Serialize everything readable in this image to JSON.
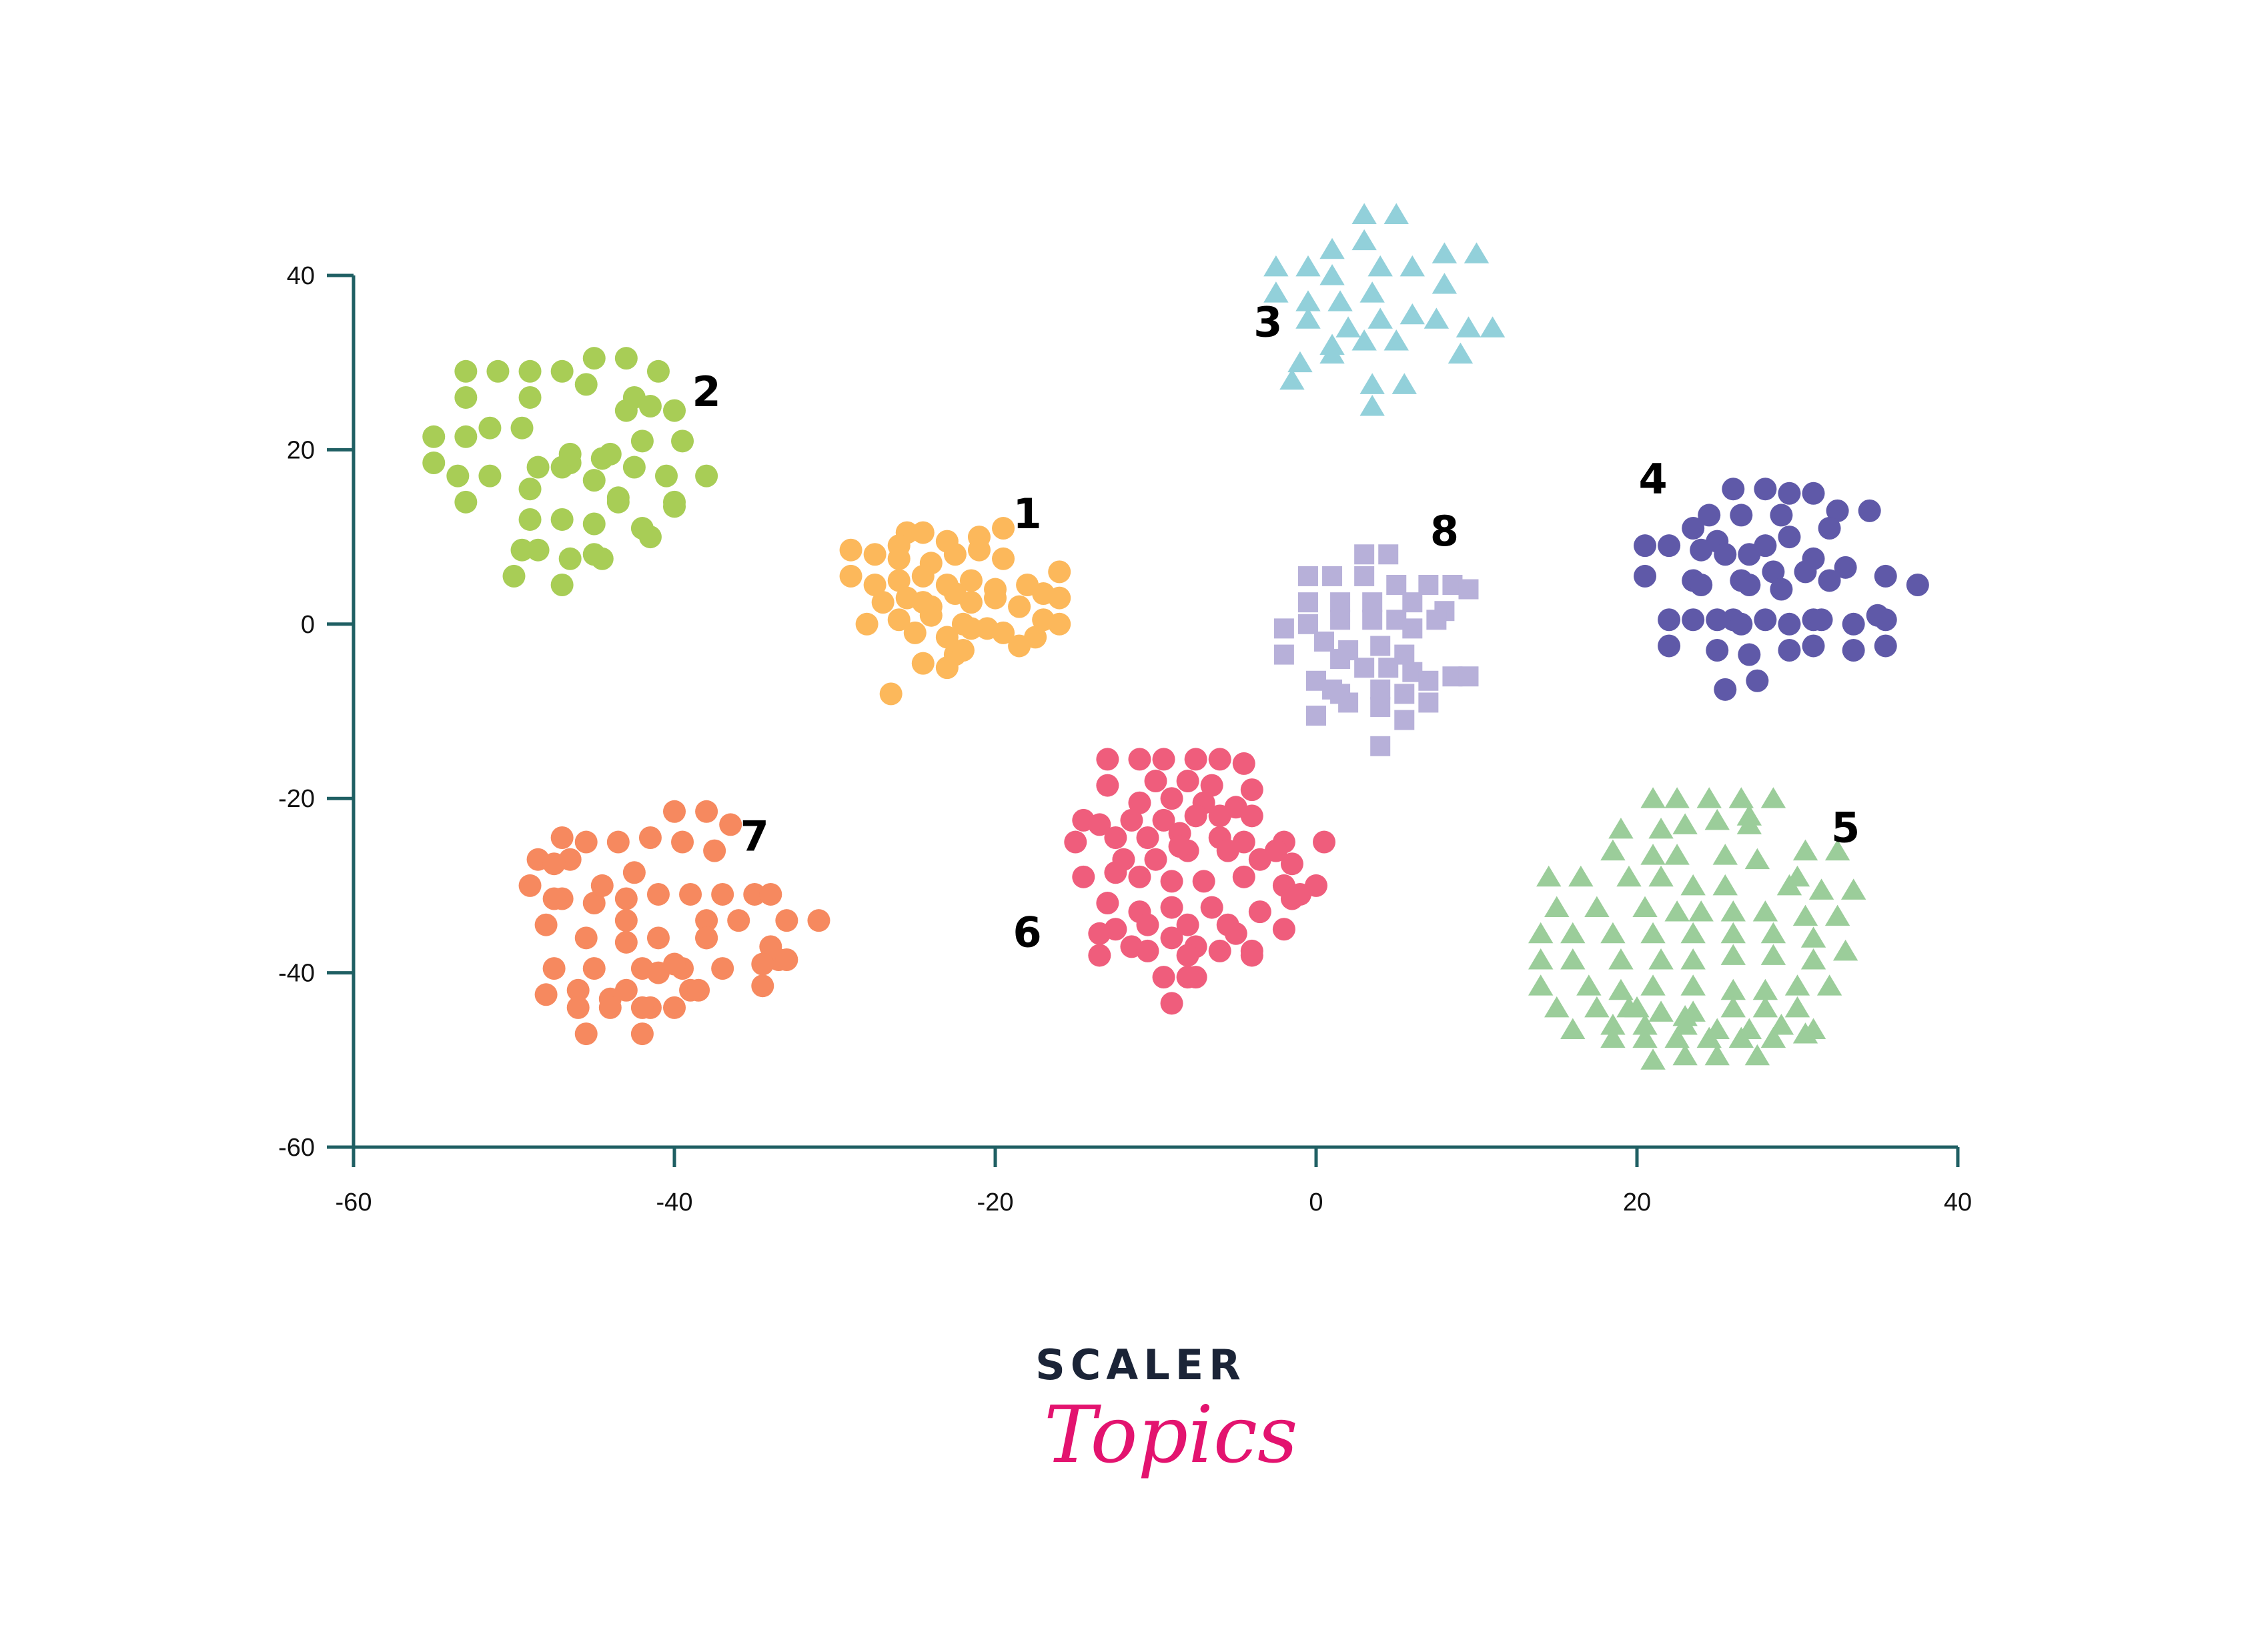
{
  "chart_data": {
    "type": "scatter",
    "title": "",
    "xlabel": "",
    "ylabel": "",
    "xlim": [
      -60,
      40
    ],
    "ylim": [
      -60,
      40
    ],
    "x_ticks": [
      "-60",
      "-40",
      "-20",
      "0",
      "20",
      "40"
    ],
    "y_ticks": [
      "40",
      "20",
      "0",
      "-20",
      "-40",
      "-60"
    ],
    "grid": false,
    "legend": "none",
    "axis_color": "#1f5f63",
    "series": [
      {
        "name": "1",
        "marker": "circle",
        "color": "#fcb85b",
        "label_pos": [
          -18,
          11
        ],
        "x": [
          -25.5,
          -26.0,
          -24.5,
          -23.0,
          -21.0,
          -19.5,
          -29.0,
          -27.5,
          -26.0,
          -24.0,
          -22.5,
          -21.0,
          -19.5,
          -29.0,
          -27.5,
          -26.0,
          -24.5,
          -23.0,
          -21.5,
          -20.0,
          -18.0,
          -16.0,
          -17.0,
          -27.0,
          -25.5,
          -24.0,
          -22.5,
          -21.5,
          -20.0,
          -18.5,
          -16.0,
          -28.0,
          -26.0,
          -24.0,
          -22.0,
          -20.5,
          -17.0,
          -25.0,
          -23.0,
          -21.5,
          -19.5,
          -18.5,
          -22.5,
          -24.5,
          -23.0,
          -16.0,
          -17.5,
          -26.5,
          -22.0,
          -24.5
        ],
        "y": [
          10.5,
          9.0,
          10.5,
          9.5,
          10.0,
          11.0,
          8.5,
          8.0,
          7.5,
          7.0,
          8.0,
          8.5,
          7.5,
          5.5,
          4.5,
          5.0,
          5.5,
          4.5,
          5.0,
          4.0,
          4.5,
          6.0,
          3.5,
          2.5,
          3.0,
          2.0,
          3.5,
          2.5,
          3.0,
          2.0,
          3.0,
          0.0,
          0.5,
          1.0,
          0.0,
          -0.5,
          0.5,
          -1.0,
          -1.5,
          -0.5,
          -1.0,
          -2.5,
          -3.5,
          -4.5,
          -5.0,
          0.0,
          -1.5,
          -8.0,
          -3.0,
          2.5
        ]
      },
      {
        "name": "2",
        "marker": "circle",
        "color": "#a8cd56",
        "label_pos": [
          -38,
          25
        ],
        "x": [
          -53,
          -51,
          -49,
          -47,
          -45,
          -43,
          -41,
          -53,
          -49,
          -45.5,
          -42.5,
          -55,
          -53,
          -51.5,
          -49.5,
          -47,
          -44,
          -42,
          -39.5,
          -55,
          -53.5,
          -51.5,
          -48.5,
          -46.5,
          -44.5,
          -42.5,
          -40.5,
          -38,
          -53,
          -49,
          -45,
          -43.5,
          -40,
          -49,
          -47,
          -45,
          -42,
          -40,
          -48.5,
          -46.5,
          -44.5,
          -50,
          -47,
          -45,
          -41.5,
          -49.5,
          -46.5,
          -43.5,
          -41.5,
          -40,
          -43
        ],
        "y": [
          29,
          29,
          29,
          29,
          30.5,
          30.5,
          29,
          26,
          26,
          27.5,
          26,
          21.5,
          21.5,
          22.5,
          22.5,
          18,
          19.5,
          21,
          21,
          18.5,
          17,
          17,
          18,
          18.5,
          19,
          18,
          17,
          17,
          14,
          15.5,
          16.5,
          14,
          14,
          12,
          12,
          11.5,
          11,
          13.5,
          8.5,
          7.5,
          7.5,
          5.5,
          4.5,
          8,
          10,
          8.5,
          19.5,
          14.5,
          25,
          24.5,
          24.5
        ]
      },
      {
        "name": "3",
        "marker": "triangle",
        "color": "#92d0da",
        "label_pos": [
          -3,
          33
        ],
        "x": [
          3,
          5,
          1,
          3,
          8,
          10,
          -2.5,
          -0.5,
          1,
          4,
          6,
          8,
          -2.5,
          -0.5,
          1.5,
          3.5,
          -0.5,
          2,
          4,
          6,
          7.5,
          9.5,
          11,
          1,
          3,
          5,
          -1,
          1,
          9,
          -1.5,
          3.5,
          5.5,
          3.5
        ],
        "y": [
          47,
          47,
          43,
          44,
          42.5,
          42.5,
          41,
          41,
          40,
          41,
          41,
          39,
          38,
          37,
          37,
          38,
          35,
          34,
          35,
          35.5,
          35,
          34,
          34,
          32,
          32.5,
          32.5,
          30,
          31,
          31,
          28,
          27.5,
          27.5,
          25
        ]
      },
      {
        "name": "4",
        "marker": "circle",
        "color": "#5f59a8",
        "label_pos": [
          21,
          15
        ],
        "x": [
          26,
          28,
          29.5,
          31,
          24.5,
          26.5,
          29,
          32.5,
          34.5,
          23.5,
          25,
          29.5,
          32,
          20.5,
          22,
          24,
          25.5,
          27,
          28,
          31,
          33,
          35.5,
          37.5,
          20.5,
          23.5,
          26.5,
          28.5,
          30.5,
          32,
          24,
          27,
          29,
          26,
          31,
          35,
          22,
          23.5,
          25,
          26.5,
          28,
          29.5,
          31.5,
          33.5,
          35.5,
          22,
          25,
          27,
          29.5,
          31,
          33.5,
          35.5,
          27.5,
          25.5
        ],
        "y": [
          15.5,
          15.5,
          15,
          15,
          12.5,
          12.5,
          12.5,
          13,
          13,
          11,
          9.5,
          10,
          11,
          9,
          9,
          8.5,
          8,
          8,
          9,
          7.5,
          6.5,
          5.5,
          4.5,
          5.5,
          5.0,
          5.0,
          6.0,
          6.0,
          5.0,
          4.5,
          4.5,
          4.0,
          0.5,
          0.5,
          1.0,
          0.5,
          0.5,
          0.5,
          0.0,
          0.5,
          0.0,
          0.5,
          0.0,
          0.5,
          -2.5,
          -3.0,
          -3.5,
          -3.0,
          -2.5,
          -3.0,
          -2.5,
          -6.5,
          -7.5
        ]
      },
      {
        "name": "5",
        "marker": "triangle",
        "color": "#9bcd9a",
        "label_pos": [
          33,
          -25
        ],
        "x": [
          21,
          22.5,
          24.5,
          26.5,
          28.5,
          19,
          21.5,
          23,
          25,
          27,
          30.5,
          32.5,
          18.5,
          21,
          22.5,
          25.5,
          27.5,
          30,
          14.5,
          16.5,
          19.5,
          21.5,
          23.5,
          25.5,
          29.5,
          31.5,
          33.5,
          15,
          17.5,
          20.5,
          22.5,
          24,
          26,
          28,
          30.5,
          32.5,
          14,
          16,
          18.5,
          21,
          23.5,
          26,
          28.5,
          31,
          14,
          16,
          19,
          21.5,
          23.5,
          26,
          28.5,
          31,
          33,
          14,
          17,
          19,
          21,
          23.5,
          26,
          28,
          30,
          32,
          15,
          17.5,
          19.5,
          21.5,
          23.5,
          26,
          28,
          30,
          16,
          18.5,
          20.5,
          23,
          25,
          27,
          29,
          31,
          18.5,
          20.5,
          22.5,
          24.5,
          26.5,
          28.5,
          30.5,
          21,
          23,
          25,
          27.5,
          20,
          23,
          27
        ],
        "y": [
          -20,
          -20,
          -20,
          -20,
          -20,
          -23.5,
          -23.5,
          -23,
          -22.5,
          -23,
          -26,
          -26,
          -26,
          -26.5,
          -26.5,
          -26.5,
          -27,
          -29,
          -29,
          -29,
          -29,
          -29,
          -30,
          -30,
          -30,
          -30.5,
          -30.5,
          -32.5,
          -32.5,
          -32.5,
          -33,
          -33,
          -33,
          -33,
          -33.5,
          -33.5,
          -35.5,
          -35.5,
          -35.5,
          -35.5,
          -35.5,
          -35.5,
          -35.5,
          -36,
          -38.5,
          -38.5,
          -38.5,
          -38.5,
          -38.5,
          -38,
          -38,
          -38.5,
          -37.5,
          -41.5,
          -41.5,
          -42,
          -41.5,
          -41.5,
          -42,
          -42,
          -41.5,
          -41.5,
          -44,
          -44,
          -44,
          -44.5,
          -44.5,
          -44,
          -44,
          -44,
          -46.5,
          -46,
          -46,
          -46,
          -46.5,
          -46.5,
          -46,
          -46.5,
          -47.5,
          -47.5,
          -47.5,
          -47.5,
          -47.5,
          -47.5,
          -47,
          -50,
          -49.5,
          -49.5,
          -49.5,
          -44,
          -45,
          -22
        ]
      },
      {
        "name": "6",
        "marker": "circle",
        "color": "#ef5d7c",
        "label_pos": [
          -18,
          -37
        ],
        "x": [
          -13,
          -11,
          -9.5,
          -7.5,
          -6,
          -4.5,
          -13,
          -10,
          -8,
          -6.5,
          -4,
          -11,
          -9,
          -7,
          -5,
          -14.5,
          -13.5,
          -11.5,
          -9.5,
          -7.5,
          -6,
          -4,
          -15,
          -12.5,
          -10.5,
          -8.5,
          -6,
          -4.5,
          -2,
          0.5,
          -2.5,
          -1.5,
          -12,
          -10,
          -8,
          -5.5,
          -3.5,
          -14.5,
          -12.5,
          -11,
          -9,
          -7,
          -4.5,
          -2,
          0,
          -1.5,
          -11,
          -9,
          -6.5,
          -3.5,
          -1,
          -12.5,
          -10.5,
          -8,
          -5.5,
          -13.5,
          -11.5,
          -9,
          -7.5,
          -4,
          -2,
          -13.5,
          -10.5,
          -8,
          -6,
          -4,
          -9.5,
          -7.5,
          -8,
          -9,
          -5,
          -8.5,
          -13
        ],
        "y": [
          -15.5,
          -15.5,
          -15.5,
          -15.5,
          -15.5,
          -16,
          -18.5,
          -18,
          -18,
          -18.5,
          -19,
          -20.5,
          -20,
          -20.5,
          -21,
          -22.5,
          -23,
          -22.5,
          -22.5,
          -22,
          -22,
          -22,
          -25,
          -24.5,
          -24.5,
          -24,
          -24.5,
          -25,
          -25,
          -25,
          -26,
          -27.5,
          -27,
          -27,
          -26,
          -26,
          -27,
          -29,
          -28.5,
          -29,
          -29.5,
          -29.5,
          -29,
          -30,
          -30,
          -31.5,
          -33,
          -32.5,
          -32.5,
          -33,
          -31,
          -35,
          -34.5,
          -34.5,
          -34.5,
          -35.5,
          -37,
          -36,
          -37,
          -37.5,
          -35,
          -38,
          -37.5,
          -38,
          -37.5,
          -38,
          -40.5,
          -40.5,
          -40.5,
          -43.5,
          -35.5,
          -25.5,
          -32
        ]
      },
      {
        "name": "7",
        "marker": "circle",
        "color": "#f6895f",
        "label_pos": [
          -35,
          -26
        ],
        "x": [
          -40,
          -38,
          -36.5,
          -41.5,
          -43.5,
          -45.5,
          -47,
          -37.5,
          -39.5,
          -48.5,
          -46.5,
          -47.5,
          -42.5,
          -49,
          -47,
          -45,
          -43,
          -41,
          -39,
          -37,
          -35,
          -44.5,
          -43,
          -38,
          -36,
          -33,
          -31,
          -48,
          -45.5,
          -43,
          -41,
          -38,
          -34,
          -33.5,
          -42,
          -39.5,
          -37,
          -34.5,
          -33,
          -45,
          -47.5,
          -41,
          -39,
          -43,
          -46,
          -48,
          -44,
          -41.5,
          -38.5,
          -34.5,
          -46,
          -44,
          -42,
          -40,
          -45.5,
          -42,
          -40,
          -38,
          -34,
          -47.5
        ],
        "y": [
          -21.5,
          -21.5,
          -23,
          -24.5,
          -25,
          -25,
          -24.5,
          -26,
          -25,
          -27,
          -27,
          -27.5,
          -28.5,
          -30,
          -31.5,
          -32,
          -31.5,
          -31,
          -31,
          -31,
          -31,
          -30,
          -34,
          -34,
          -34,
          -34,
          -34,
          -34.5,
          -36,
          -36.5,
          -36,
          -36,
          -37,
          -38.5,
          -39.5,
          -39.5,
          -39.5,
          -39,
          -38.5,
          -39.5,
          -39.5,
          -40,
          -42,
          -42,
          -42,
          -42.5,
          -43,
          -44,
          -42,
          -41.5,
          -44,
          -44,
          -44,
          -44,
          -47,
          -47,
          -39,
          -36,
          -31,
          -31.5
        ]
      },
      {
        "name": "8",
        "marker": "square",
        "color": "#b7b0d9",
        "label_pos": [
          8,
          9
        ],
        "x": [
          3,
          4.5,
          -0.5,
          1,
          3,
          5,
          7,
          8.5,
          9.5,
          -0.5,
          1.5,
          3.5,
          6,
          8,
          -2,
          -0.5,
          1.5,
          3.5,
          5,
          6,
          7.5,
          -2,
          0.5,
          2,
          4,
          5.5,
          1.5,
          3,
          4.5,
          6,
          7,
          8.5,
          9.5,
          0,
          1,
          1.5,
          4,
          5.5,
          0,
          2,
          4,
          5.5,
          7,
          4
        ],
        "y": [
          8,
          8,
          5.5,
          5.5,
          5.5,
          4.5,
          4.5,
          4.5,
          4,
          2.5,
          2.5,
          2.5,
          2.5,
          1.5,
          -0.5,
          0,
          0.5,
          0.5,
          0.5,
          -0.5,
          0.5,
          -3.5,
          -2,
          -3,
          -2.5,
          -3.5,
          -4,
          -5,
          -5,
          -5.5,
          -6.5,
          -6,
          -6,
          -6.5,
          -7.5,
          -8,
          -7.5,
          -8,
          -10.5,
          -9,
          -9.5,
          -11,
          -9,
          -14
        ]
      }
    ]
  },
  "logo": {
    "wordmark": "SCALER",
    "script": "Topics",
    "colors": {
      "wordmark": "#1b2437",
      "script": "#e3136f"
    }
  }
}
